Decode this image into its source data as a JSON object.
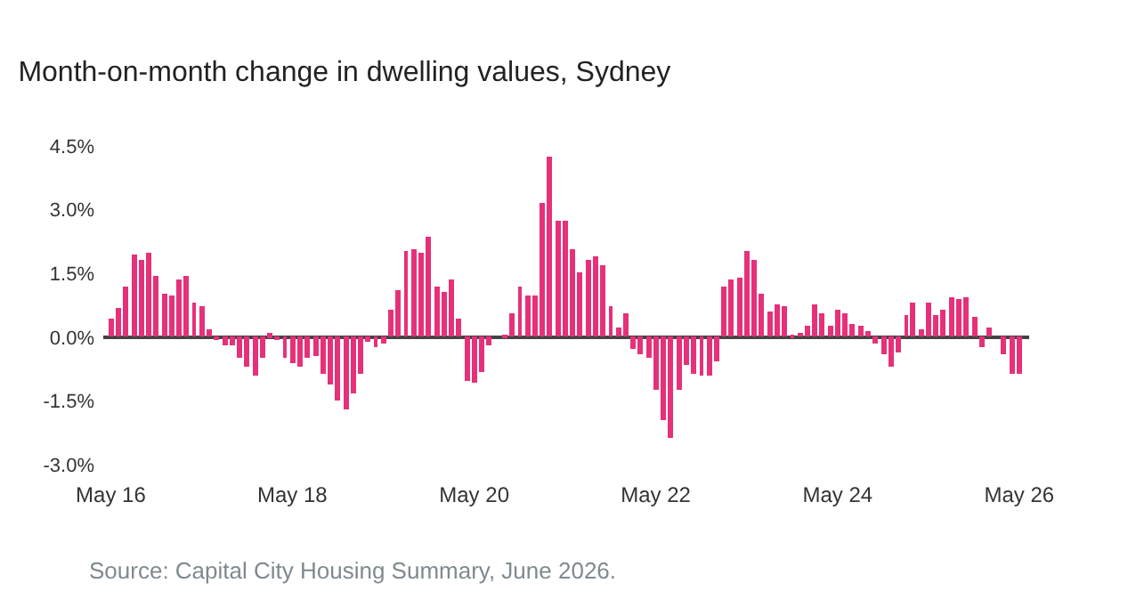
{
  "chart_data": {
    "type": "bar",
    "title": "Month-on-month change in dwelling values, Sydney",
    "x": [
      "2016-05",
      "2016-06",
      "2016-07",
      "2016-08",
      "2016-09",
      "2016-10",
      "2016-11",
      "2016-12",
      "2017-01",
      "2017-02",
      "2017-03",
      "2017-04",
      "2017-05",
      "2017-06",
      "2017-07",
      "2017-08",
      "2017-09",
      "2017-10",
      "2017-11",
      "2017-12",
      "2018-01",
      "2018-02",
      "2018-03",
      "2018-04",
      "2018-05",
      "2018-06",
      "2018-07",
      "2018-08",
      "2018-09",
      "2018-10",
      "2018-11",
      "2018-12",
      "2019-01",
      "2019-02",
      "2019-03",
      "2019-04",
      "2019-05",
      "2019-06",
      "2019-07",
      "2019-08",
      "2019-09",
      "2019-10",
      "2019-11",
      "2019-12",
      "2020-01",
      "2020-02",
      "2020-03",
      "2020-04",
      "2020-05",
      "2020-06",
      "2020-07",
      "2020-08",
      "2020-09",
      "2020-10",
      "2020-11",
      "2020-12",
      "2021-01",
      "2021-02",
      "2021-03",
      "2021-04",
      "2021-05",
      "2021-06",
      "2021-07",
      "2021-08",
      "2021-09",
      "2021-10",
      "2021-11",
      "2021-12",
      "2022-01",
      "2022-02",
      "2022-03",
      "2022-04",
      "2022-05",
      "2022-06",
      "2022-07",
      "2022-08",
      "2022-09",
      "2022-10",
      "2022-11",
      "2022-12",
      "2023-01",
      "2023-02",
      "2023-03",
      "2023-04",
      "2023-05",
      "2023-06",
      "2023-07",
      "2023-08",
      "2023-09",
      "2023-10",
      "2023-11",
      "2023-12",
      "2024-01",
      "2024-02",
      "2024-03",
      "2024-04",
      "2024-05",
      "2024-06",
      "2024-07",
      "2024-08",
      "2024-09",
      "2024-10",
      "2024-11",
      "2024-12",
      "2025-01",
      "2025-02",
      "2025-03",
      "2025-04",
      "2025-05",
      "2025-06",
      "2025-07",
      "2025-08",
      "2025-09",
      "2025-10",
      "2025-11",
      "2025-12",
      "2026-01",
      "2026-02",
      "2026-03",
      "2026-04",
      "2026-05"
    ],
    "values": [
      0.44,
      0.68,
      1.19,
      1.96,
      1.82,
      1.97,
      1.46,
      1.03,
      0.97,
      1.37,
      1.43,
      0.82,
      0.75,
      0.17,
      -0.08,
      -0.18,
      -0.18,
      -0.5,
      -0.69,
      -0.92,
      -0.47,
      0.08,
      -0.06,
      -0.5,
      -0.6,
      -0.71,
      -0.5,
      -0.46,
      -0.86,
      -1.12,
      -1.51,
      -1.72,
      -1.32,
      -0.86,
      -0.11,
      -0.22,
      -0.17,
      0.65,
      1.12,
      2.04,
      2.08,
      1.97,
      2.36,
      1.21,
      1.07,
      1.37,
      0.44,
      -1.01,
      -1.08,
      -0.81,
      -0.18,
      0.0,
      0.06,
      0.57,
      1.17,
      0.97,
      0.97,
      3.14,
      4.25,
      2.76,
      2.76,
      2.06,
      1.53,
      1.83,
      1.92,
      1.69,
      0.75,
      0.21,
      0.57,
      -0.29,
      -0.39,
      -0.49,
      -1.26,
      -1.94,
      -2.36,
      -1.24,
      -0.67,
      -0.88,
      -0.9,
      -0.92,
      -0.56,
      1.19,
      1.37,
      1.42,
      2.04,
      1.82,
      1.03,
      0.61,
      0.79,
      0.75,
      0.04,
      0.12,
      0.28,
      0.78,
      0.57,
      0.28,
      0.65,
      0.58,
      0.29,
      0.28,
      0.14,
      -0.17,
      -0.42,
      -0.69,
      -0.38,
      0.51,
      0.83,
      0.17,
      0.83,
      0.53,
      0.63,
      0.92,
      0.89,
      0.92,
      0.46,
      -0.24,
      0.21,
      0.0,
      -0.42,
      -0.85,
      -0.85
    ],
    "color": "#e6317a",
    "xlim": [
      "2016-04-01",
      "2026-06-10"
    ],
    "xticks": [
      {
        "value": "2016-05",
        "label": "May 16"
      },
      {
        "value": "2018-05",
        "label": "May 18"
      },
      {
        "value": "2020-05",
        "label": "May 20"
      },
      {
        "value": "2022-05",
        "label": "May 22"
      },
      {
        "value": "2024-05",
        "label": "May 24"
      },
      {
        "value": "2026-05",
        "label": "May 26"
      }
    ],
    "ylim": [
      -3.0,
      4.5
    ],
    "yticks": [
      {
        "value": -3.0,
        "label": "-3.0%"
      },
      {
        "value": -1.5,
        "label": "-1.5%"
      },
      {
        "value": 0,
        "label": "0.0%"
      },
      {
        "value": 1.5,
        "label": "1.5%"
      },
      {
        "value": 3.0,
        "label": "3.0%"
      },
      {
        "value": 4.5,
        "label": "4.5%"
      }
    ],
    "legend": false,
    "annotations": [
      "Source: Capital City Housing Summary, June 2026."
    ]
  }
}
